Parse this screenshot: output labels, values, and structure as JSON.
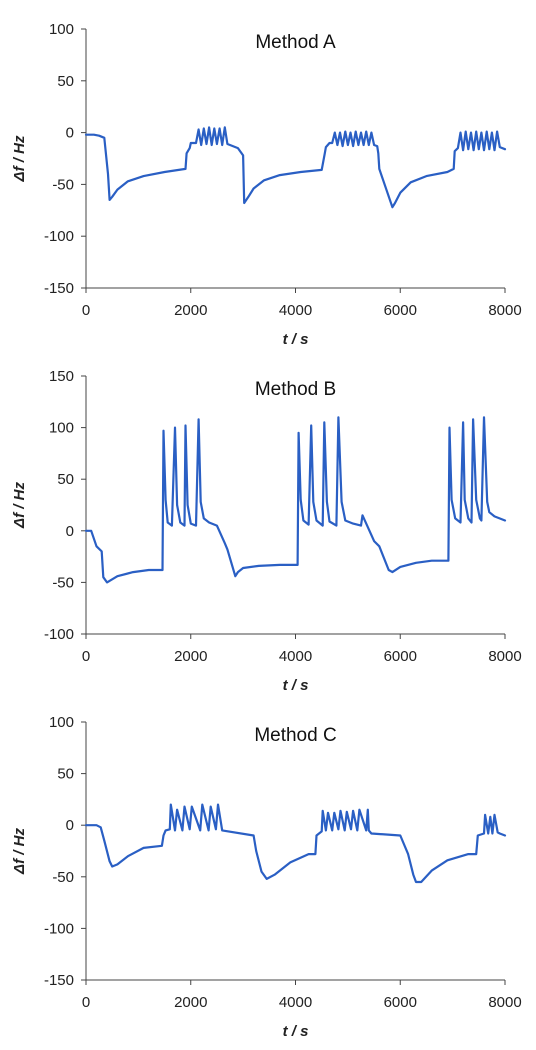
{
  "chart_data": [
    {
      "type": "line",
      "title": "Method A",
      "xlabel": "t / s",
      "ylabel": "Δf / Hz",
      "xlim": [
        0,
        8000
      ],
      "ylim": [
        -150,
        100
      ],
      "xticks": [
        0,
        2000,
        4000,
        6000,
        8000
      ],
      "yticks": [
        -150,
        -100,
        -50,
        0,
        50,
        100
      ],
      "grid": false,
      "legend": "none",
      "line_color": "#2a5fc4",
      "series": [
        {
          "x": [
            0,
            150,
            250,
            350,
            420,
            450,
            500,
            600,
            800,
            1100,
            1500,
            1900,
            1920,
            1980,
            2000,
            2100,
            2150,
            2200,
            2250,
            2300,
            2350,
            2400,
            2450,
            2500,
            2550,
            2600,
            2650,
            2700,
            2750,
            2900,
            3000,
            3020,
            3100,
            3200,
            3400,
            3700,
            4100,
            4500,
            4560,
            4580,
            4650,
            4700,
            4750,
            4800,
            4850,
            4900,
            4950,
            5000,
            5050,
            5100,
            5150,
            5200,
            5250,
            5300,
            5350,
            5400,
            5450,
            5500,
            5560,
            5580,
            5600,
            5850,
            5900,
            6000,
            6200,
            6500,
            6900,
            7020,
            7040,
            7100,
            7150,
            7200,
            7250,
            7300,
            7350,
            7400,
            7450,
            7500,
            7550,
            7600,
            7650,
            7700,
            7750,
            7800,
            7850,
            7900,
            8000
          ],
          "y": [
            -2,
            -2,
            -3,
            -5,
            -40,
            -65,
            -62,
            -55,
            -47,
            -42,
            -38,
            -35,
            -20,
            -15,
            -10,
            -10,
            3,
            -12,
            4,
            -11,
            5,
            -12,
            4,
            -11,
            4,
            -12,
            5,
            -11,
            -12,
            -15,
            -22,
            -68,
            -62,
            -54,
            -46,
            -41,
            -38,
            -36,
            -20,
            -14,
            -10,
            -10,
            0,
            -12,
            0,
            -13,
            1,
            -12,
            0,
            -13,
            1,
            -12,
            0,
            -12,
            1,
            -12,
            0,
            -12,
            -13,
            -20,
            -35,
            -72,
            -68,
            -58,
            -48,
            -42,
            -38,
            -35,
            -18,
            -15,
            0,
            -17,
            1,
            -16,
            0,
            -17,
            1,
            -16,
            0,
            -17,
            1,
            -16,
            0,
            -17,
            1,
            -14,
            -16
          ]
        }
      ]
    },
    {
      "type": "line",
      "title": "Method B",
      "xlabel": "t / s",
      "ylabel": "Δf / Hz",
      "xlim": [
        0,
        8000
      ],
      "ylim": [
        -100,
        150
      ],
      "xticks": [
        0,
        2000,
        4000,
        6000,
        8000
      ],
      "yticks": [
        -100,
        -50,
        0,
        50,
        100,
        150
      ],
      "grid": false,
      "legend": "none",
      "line_color": "#2a5fc4",
      "series": [
        {
          "x": [
            0,
            100,
            200,
            300,
            330,
            400,
            600,
            900,
            1200,
            1460,
            1480,
            1520,
            1560,
            1640,
            1700,
            1740,
            1800,
            1880,
            1900,
            1940,
            2000,
            2100,
            2150,
            2190,
            2250,
            2350,
            2500,
            2650,
            2700,
            2850,
            2900,
            3000,
            3300,
            3700,
            4040,
            4060,
            4100,
            4150,
            4250,
            4300,
            4340,
            4400,
            4520,
            4550,
            4600,
            4650,
            4780,
            4820,
            4880,
            4950,
            5100,
            5250,
            5280,
            5500,
            5600,
            5780,
            5850,
            6000,
            6300,
            6600,
            6920,
            6940,
            6980,
            7050,
            7150,
            7200,
            7230,
            7300,
            7360,
            7390,
            7450,
            7520,
            7550,
            7600,
            7660,
            7700,
            7800,
            8000
          ],
          "y": [
            0,
            0,
            -15,
            -20,
            -45,
            -50,
            -44,
            -40,
            -38,
            -38,
            97,
            30,
            8,
            5,
            100,
            25,
            8,
            5,
            102,
            25,
            7,
            5,
            108,
            28,
            12,
            8,
            5,
            -12,
            -18,
            -44,
            -40,
            -36,
            -34,
            -33,
            -33,
            95,
            30,
            10,
            6,
            102,
            28,
            10,
            5,
            105,
            28,
            9,
            5,
            110,
            28,
            10,
            7,
            5,
            15,
            -10,
            -15,
            -38,
            -40,
            -35,
            -31,
            -29,
            -29,
            100,
            30,
            12,
            8,
            105,
            30,
            12,
            8,
            108,
            30,
            12,
            10,
            110,
            28,
            18,
            14,
            10
          ]
        }
      ]
    },
    {
      "type": "line",
      "title": "Method C",
      "xlabel": "t / s",
      "ylabel": "Δf / Hz",
      "xlim": [
        0,
        8000
      ],
      "ylim": [
        -150,
        100
      ],
      "xticks": [
        0,
        2000,
        4000,
        6000,
        8000
      ],
      "yticks": [
        -150,
        -100,
        -50,
        0,
        50,
        100
      ],
      "grid": false,
      "legend": "none",
      "line_color": "#2a5fc4",
      "series": [
        {
          "x": [
            0,
            200,
            280,
            350,
            450,
            500,
            600,
            800,
            1100,
            1450,
            1480,
            1520,
            1600,
            1620,
            1700,
            1740,
            1840,
            1880,
            1980,
            2020,
            2180,
            2220,
            2340,
            2380,
            2480,
            2520,
            2600,
            3200,
            3250,
            3350,
            3450,
            3600,
            3900,
            4250,
            4380,
            4400,
            4500,
            4520,
            4580,
            4620,
            4700,
            4740,
            4820,
            4860,
            4940,
            4980,
            5060,
            5100,
            5180,
            5220,
            5350,
            5380,
            5400,
            5450,
            6000,
            6150,
            6250,
            6300,
            6400,
            6600,
            6900,
            7300,
            7450,
            7480,
            7600,
            7620,
            7680,
            7720,
            7760,
            7800,
            7860,
            7900,
            8000
          ],
          "y": [
            0,
            0,
            -2,
            -15,
            -35,
            -40,
            -38,
            -30,
            -22,
            -20,
            -10,
            -5,
            -4,
            20,
            -5,
            15,
            -5,
            18,
            -4,
            18,
            -5,
            20,
            -5,
            18,
            -4,
            20,
            -5,
            -10,
            -25,
            -45,
            -52,
            -48,
            -36,
            -28,
            -28,
            -10,
            -6,
            14,
            -5,
            12,
            -5,
            12,
            -4,
            14,
            -5,
            13,
            -4,
            14,
            -5,
            15,
            -5,
            15,
            -5,
            -8,
            -10,
            -28,
            -48,
            -55,
            -55,
            -44,
            -34,
            -28,
            -28,
            -10,
            -8,
            10,
            -8,
            8,
            -8,
            10,
            -7,
            -8,
            -10
          ]
        }
      ]
    }
  ]
}
